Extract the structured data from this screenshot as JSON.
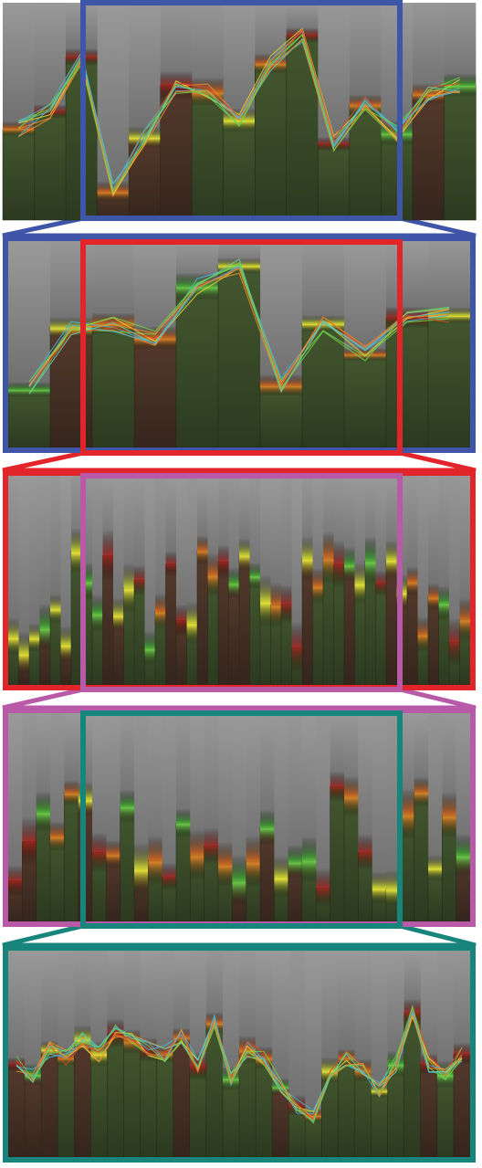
{
  "figure": {
    "panel_count": 5,
    "colors": {
      "blue": "#3f56a8",
      "red": "#e2242b",
      "magenta": "#b85aa8",
      "teal": "#17857b",
      "bar_top": "#8d8d8d",
      "bar_bottom_green": "#3a4a2a",
      "bar_bottom_brown": "#4a3328",
      "glow_orange": "#d66a1c",
      "glow_yellow": "#e9df32",
      "glow_green": "#3ec63a",
      "line_cyan": "#47b3d8",
      "line_orange": "#f08a2a",
      "line_green": "#6ed04a"
    },
    "panels": [
      {
        "id": "panel-1",
        "frame": "none",
        "highlight": "blue",
        "bars": 15,
        "style": "wide-with-lines"
      },
      {
        "id": "panel-2",
        "frame": "blue",
        "highlight": "red",
        "bars": 11,
        "style": "wide-with-lines"
      },
      {
        "id": "panel-3",
        "frame": "red",
        "highlight": "magenta",
        "bars": 44,
        "style": "narrow"
      },
      {
        "id": "panel-4",
        "frame": "magenta",
        "highlight": "teal",
        "bars": 33,
        "style": "narrow"
      },
      {
        "id": "panel-5",
        "frame": "teal",
        "highlight": "none",
        "bars": 28,
        "style": "medium-with-lines"
      }
    ]
  }
}
